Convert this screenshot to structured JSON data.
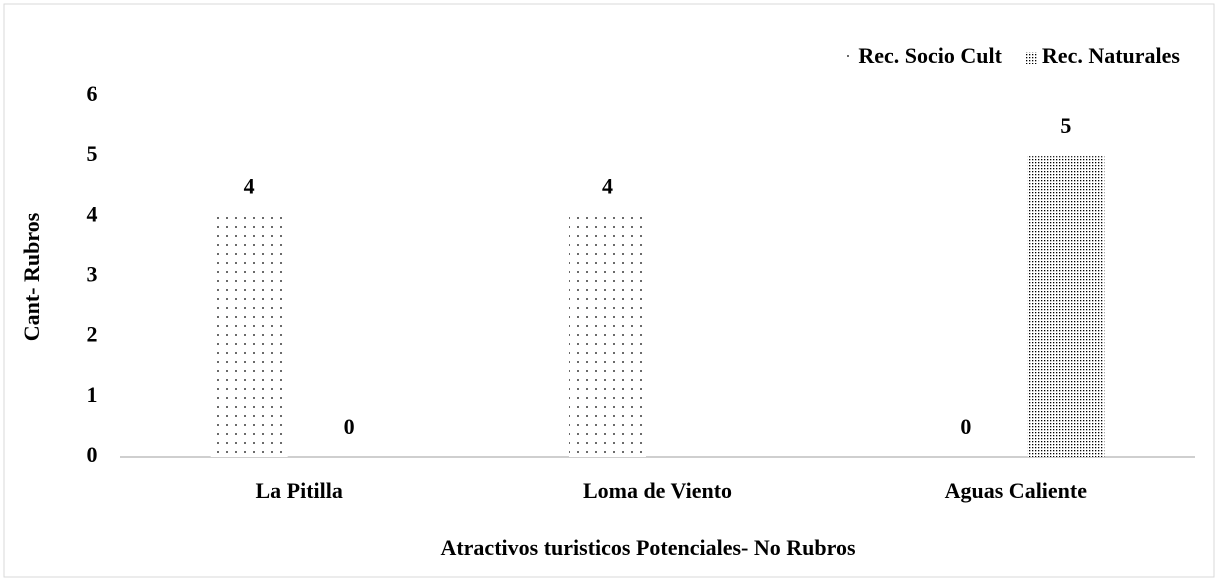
{
  "chart_data": {
    "type": "bar",
    "categories": [
      "La Pitilla",
      "Loma de Viento",
      "Aguas Caliente"
    ],
    "series": [
      {
        "name": "Rec. Socio Cult",
        "color": "#000000",
        "values": [
          4,
          4,
          0
        ]
      },
      {
        "name": "Rec. Naturales",
        "color": "#000000",
        "values": [
          0,
          null,
          5
        ]
      }
    ],
    "x_label": "Atractivos turisticos Potenciales- No Rubros",
    "y_label": "Cant- Rubros",
    "ylim": [
      0,
      6
    ],
    "yticks": [
      0,
      1,
      2,
      3,
      4,
      5,
      6
    ],
    "legend": "top-right",
    "grid": false
  }
}
